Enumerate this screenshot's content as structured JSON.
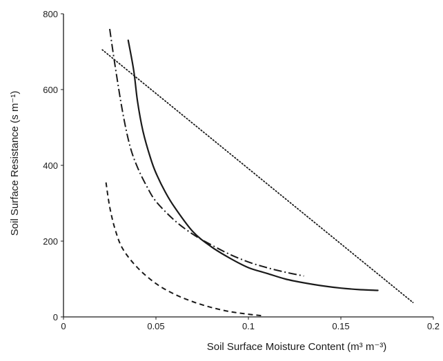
{
  "chart_data": {
    "type": "line",
    "title": "",
    "xlabel": "Soil Surface Moisture Content (m³ m⁻³)",
    "ylabel": "Soil Surface Resistance (s m⁻¹)",
    "xlim": [
      0,
      0.2
    ],
    "ylim": [
      0,
      800
    ],
    "x_ticks": [
      0,
      0.05,
      0.1,
      0.15,
      0.2
    ],
    "x_tick_labels": [
      "0",
      "0.05",
      "0.1",
      "0.15",
      "0.2"
    ],
    "y_ticks": [
      0,
      200,
      400,
      600,
      800
    ],
    "y_tick_labels": [
      "0",
      "200",
      "400",
      "600",
      "800"
    ],
    "grid": false,
    "legend": "none",
    "series": [
      {
        "style": "dashed",
        "color": "#1a1a1a",
        "x": [
          0.023,
          0.025,
          0.028,
          0.032,
          0.04,
          0.05,
          0.06,
          0.07,
          0.08,
          0.09,
          0.1,
          0.108
        ],
        "y": [
          355,
          290,
          230,
          180,
          130,
          88,
          60,
          40,
          25,
          14,
          7,
          3
        ]
      },
      {
        "style": "dash-dot",
        "color": "#1a1a1a",
        "x": [
          0.025,
          0.028,
          0.032,
          0.036,
          0.04,
          0.045,
          0.05,
          0.06,
          0.07,
          0.08,
          0.09,
          0.1,
          0.11,
          0.12,
          0.13
        ],
        "y": [
          760,
          660,
          540,
          450,
          395,
          345,
          305,
          255,
          218,
          190,
          165,
          145,
          130,
          118,
          108
        ]
      },
      {
        "style": "solid",
        "color": "#1a1a1a",
        "x": [
          0.035,
          0.038,
          0.04,
          0.043,
          0.047,
          0.05,
          0.055,
          0.06,
          0.07,
          0.08,
          0.09,
          0.1,
          0.11,
          0.12,
          0.13,
          0.14,
          0.15,
          0.16,
          0.17
        ],
        "y": [
          730,
          650,
          570,
          490,
          420,
          380,
          330,
          290,
          225,
          185,
          155,
          130,
          115,
          100,
          90,
          82,
          76,
          72,
          70
        ]
      },
      {
        "style": "dotted",
        "color": "#1a1a1a",
        "x": [
          0.021,
          0.189
        ],
        "y": [
          705,
          38
        ]
      }
    ]
  }
}
